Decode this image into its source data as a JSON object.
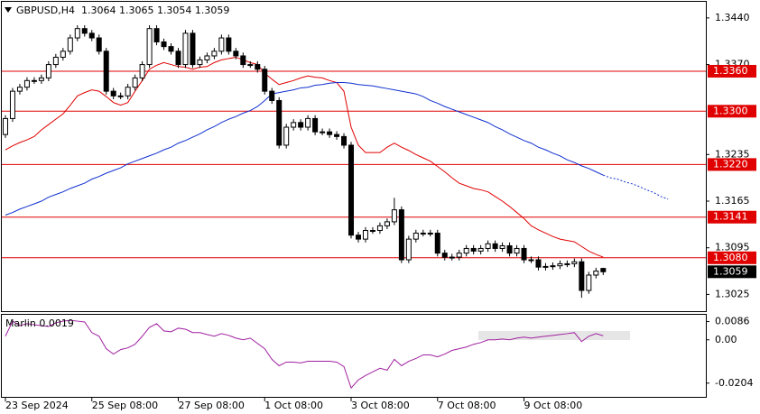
{
  "header": "GBPUSD,H4  1.3064 1.3065 1.3054 1.3059",
  "chart_data": [
    {
      "type": "candlestick",
      "xlim": [
        -0.5,
        97.25
      ],
      "ylim": [
        1.29985,
        1.34642
      ],
      "yticks": [
        {
          "value": 1.344,
          "label": "1.3440"
        },
        {
          "value": 1.337,
          "label": "1.3370"
        },
        1.3235,
        1.3165,
        1.3095,
        1.3025
      ],
      "xticks": [
        {
          "value": 0,
          "label": "23 Sep 2024"
        },
        {
          "value": 12,
          "label": "25 Sep 08:00"
        },
        {
          "value": 24,
          "label": "27 Sep 08:00"
        },
        {
          "value": 36,
          "label": "1 Oct 08:00"
        },
        {
          "value": 48,
          "label": "3 Oct 08:00"
        },
        {
          "value": 60,
          "label": "7 Oct 08:00"
        },
        {
          "value": 72,
          "label": "9 Oct 08:00"
        }
      ],
      "bull_color": "#ffffff",
      "bear_color": "#000000",
      "candles": [
        [
          1.3265,
          1.3294,
          1.326,
          1.3289
        ],
        [
          1.3289,
          1.3335,
          1.3284,
          1.333
        ],
        [
          1.333,
          1.3341,
          1.3325,
          1.3336
        ],
        [
          1.3336,
          1.3351,
          1.3331,
          1.3346
        ],
        [
          1.3346,
          1.3351,
          1.3341,
          1.3346
        ],
        [
          1.3346,
          1.3355,
          1.3341,
          1.335
        ],
        [
          1.335,
          1.3375,
          1.3345,
          1.337
        ],
        [
          1.337,
          1.3386,
          1.3365,
          1.3381
        ],
        [
          1.3381,
          1.3395,
          1.3376,
          1.339
        ],
        [
          1.339,
          1.3415,
          1.3385,
          1.341
        ],
        [
          1.341,
          1.3429,
          1.3405,
          1.3424
        ],
        [
          1.3424,
          1.3429,
          1.3412,
          1.3417
        ],
        [
          1.3417,
          1.3422,
          1.3405,
          1.341
        ],
        [
          1.341,
          1.3415,
          1.3385,
          1.339
        ],
        [
          1.339,
          1.3395,
          1.3325,
          1.333
        ],
        [
          1.333,
          1.3335,
          1.3318,
          1.3323
        ],
        [
          1.3323,
          1.3328,
          1.3318,
          1.3323
        ],
        [
          1.3323,
          1.3341,
          1.3318,
          1.3336
        ],
        [
          1.3336,
          1.3355,
          1.3331,
          1.335
        ],
        [
          1.335,
          1.3375,
          1.3345,
          1.337
        ],
        [
          1.337,
          1.3429,
          1.3365,
          1.3424
        ],
        [
          1.3424,
          1.3429,
          1.3399,
          1.3404
        ],
        [
          1.3404,
          1.3409,
          1.3392,
          1.3397
        ],
        [
          1.3397,
          1.3402,
          1.3385,
          1.339
        ],
        [
          1.339,
          1.3395,
          1.3365,
          1.337
        ],
        [
          1.337,
          1.3422,
          1.3365,
          1.3417
        ],
        [
          1.3417,
          1.3422,
          1.3365,
          1.337
        ],
        [
          1.337,
          1.3382,
          1.3365,
          1.3377
        ],
        [
          1.3377,
          1.3388,
          1.3372,
          1.3383
        ],
        [
          1.3383,
          1.3395,
          1.3378,
          1.339
        ],
        [
          1.339,
          1.3415,
          1.3385,
          1.341
        ],
        [
          1.341,
          1.3415,
          1.3385,
          1.339
        ],
        [
          1.339,
          1.3395,
          1.3378,
          1.3383
        ],
        [
          1.3383,
          1.3388,
          1.3365,
          1.337
        ],
        [
          1.337,
          1.3375,
          1.3365,
          1.337
        ],
        [
          1.337,
          1.3375,
          1.3358,
          1.3363
        ],
        [
          1.3363,
          1.3368,
          1.3325,
          1.333
        ],
        [
          1.333,
          1.3335,
          1.3311,
          1.3316
        ],
        [
          1.3316,
          1.3321,
          1.3244,
          1.3249
        ],
        [
          1.3249,
          1.3281,
          1.3244,
          1.3276
        ],
        [
          1.3276,
          1.3288,
          1.3271,
          1.3283
        ],
        [
          1.3283,
          1.3288,
          1.3271,
          1.3276
        ],
        [
          1.3276,
          1.3294,
          1.3271,
          1.3289
        ],
        [
          1.3289,
          1.3294,
          1.3264,
          1.3269
        ],
        [
          1.3269,
          1.3274,
          1.3264,
          1.3269
        ],
        [
          1.3269,
          1.3274,
          1.326,
          1.3265
        ],
        [
          1.3265,
          1.327,
          1.3257,
          1.3262
        ],
        [
          1.3262,
          1.3267,
          1.3244,
          1.3249
        ],
        [
          1.3249,
          1.3254,
          1.3109,
          1.3114
        ],
        [
          1.3114,
          1.3119,
          1.3103,
          1.3108
        ],
        [
          1.3108,
          1.3126,
          1.3103,
          1.3121
        ],
        [
          1.3121,
          1.3126,
          1.3116,
          1.3121
        ],
        [
          1.3121,
          1.3133,
          1.3116,
          1.3128
        ],
        [
          1.3128,
          1.3139,
          1.3123,
          1.3134
        ],
        [
          1.3134,
          1.317,
          1.3129,
          1.3152
        ],
        [
          1.3152,
          1.3157,
          1.3072,
          1.3077
        ],
        [
          1.3077,
          1.3113,
          1.3072,
          1.3108
        ],
        [
          1.3108,
          1.3122,
          1.3103,
          1.3117
        ],
        [
          1.3117,
          1.3122,
          1.3112,
          1.3117
        ],
        [
          1.3117,
          1.3122,
          1.3112,
          1.3117
        ],
        [
          1.3117,
          1.3122,
          1.3082,
          1.3087
        ],
        [
          1.3087,
          1.3092,
          1.3076,
          1.3081
        ],
        [
          1.3081,
          1.3086,
          1.3076,
          1.3081
        ],
        [
          1.3081,
          1.3092,
          1.3076,
          1.3087
        ],
        [
          1.3087,
          1.3099,
          1.3082,
          1.3094
        ],
        [
          1.3094,
          1.3099,
          1.3085,
          1.309
        ],
        [
          1.309,
          1.3099,
          1.3085,
          1.3094
        ],
        [
          1.3094,
          1.3106,
          1.3089,
          1.3101
        ],
        [
          1.3101,
          1.3106,
          1.3089,
          1.3094
        ],
        [
          1.3094,
          1.3103,
          1.3089,
          1.3098
        ],
        [
          1.3098,
          1.3103,
          1.3082,
          1.3087
        ],
        [
          1.3087,
          1.3099,
          1.3082,
          1.3094
        ],
        [
          1.3094,
          1.3099,
          1.3072,
          1.3077
        ],
        [
          1.3077,
          1.3082,
          1.3072,
          1.3077
        ],
        [
          1.3077,
          1.3082,
          1.3061,
          1.3066
        ],
        [
          1.3066,
          1.3072,
          1.3061,
          1.3067
        ],
        [
          1.3067,
          1.3073,
          1.3062,
          1.3068
        ],
        [
          1.3068,
          1.3076,
          1.3063,
          1.3071
        ],
        [
          1.3071,
          1.3076,
          1.3066,
          1.3071
        ],
        [
          1.3071,
          1.3079,
          1.3066,
          1.3074
        ],
        [
          1.3074,
          1.3079,
          1.302,
          1.3031
        ],
        [
          1.3031,
          1.3059,
          1.3026,
          1.3054
        ],
        [
          1.3054,
          1.3065,
          1.3049,
          1.306
        ],
        [
          1.3064,
          1.3065,
          1.3054,
          1.3059
        ]
      ],
      "lines": [
        {
          "color": "#e00000",
          "values": [
            1.3242,
            1.3248,
            1.3253,
            1.3257,
            1.3262,
            1.3272,
            1.328,
            1.3288,
            1.3296,
            1.3309,
            1.3323,
            1.3328,
            1.3332,
            1.333,
            1.3322,
            1.3313,
            1.3309,
            1.3313,
            1.333,
            1.3346,
            1.3363,
            1.3369,
            1.3373,
            1.337,
            1.3367,
            1.3366,
            1.3363,
            1.3366,
            1.3367,
            1.3373,
            1.3377,
            1.3379,
            1.3381,
            1.3377,
            1.3373,
            1.337,
            1.3357,
            1.3348,
            1.334,
            1.3343,
            1.3346,
            1.335,
            1.3353,
            1.3351,
            1.335,
            1.3346,
            1.3343,
            1.333,
            1.3276,
            1.3249,
            1.3238,
            1.3238,
            1.3238,
            1.3246,
            1.3252,
            1.3246,
            1.3241,
            1.3235,
            1.323,
            1.3225,
            1.3217,
            1.3209,
            1.32,
            1.3192,
            1.3188,
            1.3184,
            1.3182,
            1.3179,
            1.3172,
            1.3165,
            1.3157,
            1.3148,
            1.3139,
            1.3128,
            1.3122,
            1.3117,
            1.3112,
            1.3108,
            1.3106,
            1.3104,
            1.3097,
            1.309,
            1.3085,
            1.3081
          ]
        },
        {
          "color": "#1030d0",
          "dashed_from": 83,
          "values": [
            1.3144,
            1.3148,
            1.3153,
            1.3157,
            1.3161,
            1.3165,
            1.3171,
            1.3175,
            1.3179,
            1.3184,
            1.3188,
            1.3192,
            1.3198,
            1.3202,
            1.3207,
            1.3211,
            1.3215,
            1.3221,
            1.3225,
            1.3229,
            1.3233,
            1.3237,
            1.3242,
            1.3246,
            1.3252,
            1.3256,
            1.3261,
            1.3266,
            1.3272,
            1.3277,
            1.3283,
            1.3288,
            1.3292,
            1.3297,
            1.3301,
            1.3307,
            1.3316,
            1.3326,
            1.3328,
            1.333,
            1.3332,
            1.3335,
            1.3336,
            1.3339,
            1.334,
            1.3342,
            1.3343,
            1.3343,
            1.3342,
            1.334,
            1.3339,
            1.3338,
            1.3336,
            1.3334,
            1.3332,
            1.333,
            1.3328,
            1.3326,
            1.3322,
            1.3316,
            1.3312,
            1.3307,
            1.3303,
            1.3299,
            1.3295,
            1.3291,
            1.3287,
            1.3283,
            1.3277,
            1.3272,
            1.3266,
            1.3261,
            1.3256,
            1.3252,
            1.3246,
            1.3242,
            1.3237,
            1.3233,
            1.3227,
            1.3223,
            1.3218,
            1.3214,
            1.3209,
            1.3204,
            1.32,
            1.3198,
            1.3194,
            1.3191,
            1.3187,
            1.3182,
            1.3178,
            1.3172,
            1.3168
          ]
        }
      ],
      "levels_color": "#e00000",
      "levels": [
        {
          "value": 1.336,
          "label": "1.3360"
        },
        {
          "value": 1.33,
          "label": "1.3300"
        },
        {
          "value": 1.322,
          "label": "1.3220"
        },
        1.3141,
        {
          "value": 1.308,
          "label": "1.3080"
        }
      ],
      "last_price": 1.3059
    },
    {
      "type": "line",
      "title": "Marlin 0.0019",
      "color": "#a020a0",
      "xlim": [
        -0.5,
        97.25
      ],
      "ylim": [
        -0.0273,
        0.0118
      ],
      "yticks": [
        0.0086,
        {
          "value": 0,
          "label": "0.00"
        },
        -0.0204
      ],
      "values": [
        0.0017,
        0.0088,
        0.0067,
        0.0076,
        0.0071,
        0.0067,
        0.0063,
        0.008,
        0.0088,
        0.0092,
        0.0088,
        0.0084,
        0.0034,
        0.0017,
        -0.0042,
        -0.0067,
        -0.0046,
        -0.0038,
        -0.0021,
        0.0017,
        0.0059,
        0.0076,
        0.0042,
        0.0038,
        0.0055,
        0.005,
        0.0034,
        0.0034,
        0.0025,
        0.0017,
        0.0029,
        0.0021,
        0.0008,
        0,
        0.0008,
        -0.0017,
        -0.0042,
        -0.0092,
        -0.0122,
        -0.0105,
        -0.0105,
        -0.0109,
        -0.0101,
        -0.0101,
        -0.0101,
        -0.0101,
        -0.0105,
        -0.0126,
        -0.0227,
        -0.0189,
        -0.0168,
        -0.0151,
        -0.0134,
        -0.0143,
        -0.0092,
        -0.0122,
        -0.0101,
        -0.0088,
        -0.0071,
        -0.0071,
        -0.008,
        -0.0067,
        -0.005,
        -0.0042,
        -0.0034,
        -0.0021,
        -0.0013,
        0,
        0,
        0.0004,
        0,
        0.0008,
        0.0013,
        0.0008,
        0.0013,
        0.0017,
        0.0021,
        0.0025,
        0.0029,
        0.0034,
        -0.0008,
        0.0017,
        0.0029,
        0.0019
      ]
    }
  ]
}
